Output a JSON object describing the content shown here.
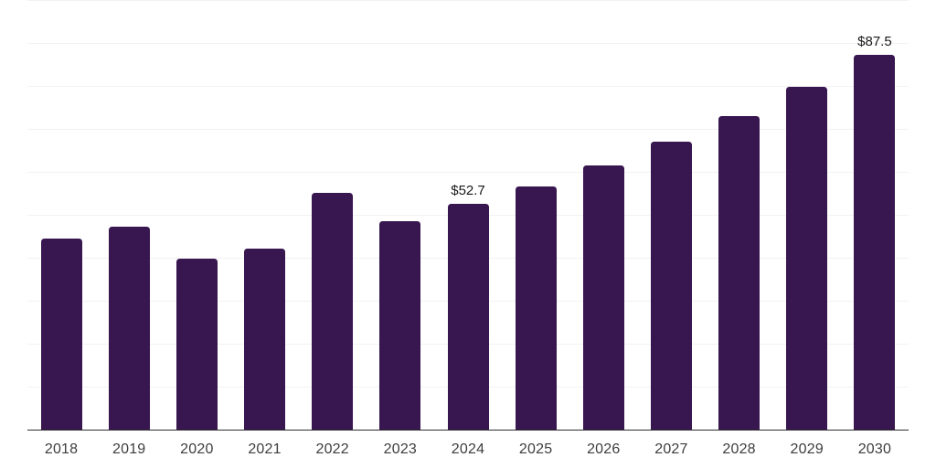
{
  "chart_data": {
    "type": "bar",
    "title": "",
    "xlabel": "",
    "ylabel": "",
    "categories": [
      "2018",
      "2019",
      "2020",
      "2021",
      "2022",
      "2023",
      "2024",
      "2025",
      "2026",
      "2027",
      "2028",
      "2029",
      "2030"
    ],
    "values": [
      44.7,
      47.4,
      40.1,
      42.4,
      55.3,
      48.8,
      52.7,
      56.9,
      61.7,
      67.2,
      73.2,
      79.9,
      87.5
    ],
    "data_labels": [
      {
        "category": "2024",
        "text": "$52.7"
      },
      {
        "category": "2030",
        "text": "$87.5"
      }
    ],
    "ylim": [
      0,
      100
    ],
    "grid_step": 10,
    "grid": "horizontal",
    "legend": "none",
    "colors": {
      "bar": "#38164F",
      "grid": "#f2f2f2",
      "axis": "#2e2e2e",
      "tick_label": "#3d3d3d",
      "annotation": "#1a1a1a",
      "background": "#ffffff"
    }
  }
}
